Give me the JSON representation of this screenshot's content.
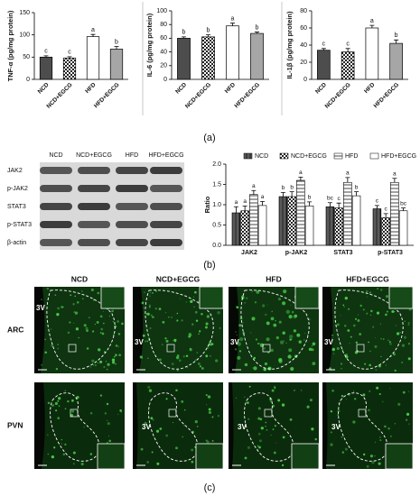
{
  "figure": {
    "panel_labels": [
      "(a)",
      "(b)",
      "(c)"
    ]
  },
  "chart_data": [
    {
      "type": "bar",
      "y_label": "TNF-α (pg/mg protein)",
      "categories": [
        "NCD",
        "NCD+EGCG",
        "HFD",
        "HFD+EGCG"
      ],
      "values": [
        50,
        48,
        96,
        68
      ],
      "errors": [
        3,
        3,
        5,
        6
      ],
      "letters": [
        "c",
        "c",
        "a",
        "b"
      ],
      "colors": [
        "#4d4d4d",
        "#ffffff",
        "#ffffff",
        "#a6a6a6"
      ],
      "patterns": [
        "solid",
        "checker",
        "solid",
        "solid"
      ],
      "ylim": [
        0,
        150
      ],
      "yticks": [
        0,
        50,
        100,
        150
      ]
    },
    {
      "type": "bar",
      "y_label": "IL-6 (pg/mg protein)",
      "categories": [
        "NCD",
        "NCD+EGCG",
        "HFD",
        "HFD+EGCG"
      ],
      "values": [
        60,
        62,
        78,
        67
      ],
      "errors": [
        2,
        3,
        4,
        2
      ],
      "letters": [
        "b",
        "b",
        "a",
        "b"
      ],
      "colors": [
        "#4d4d4d",
        "#ffffff",
        "#ffffff",
        "#a6a6a6"
      ],
      "patterns": [
        "solid",
        "checker",
        "solid",
        "solid"
      ],
      "ylim": [
        0,
        100
      ],
      "yticks": [
        0,
        20,
        40,
        60,
        80,
        100
      ]
    },
    {
      "type": "bar",
      "y_label": "IL-1β (pg/mg protein)",
      "categories": [
        "NCD",
        "NCD+EGCG",
        "HFD",
        "HFD+EGCG"
      ],
      "values": [
        34,
        32,
        60,
        42
      ],
      "errors": [
        2,
        4,
        3,
        4
      ],
      "letters": [
        "c",
        "c",
        "a",
        "b"
      ],
      "colors": [
        "#4d4d4d",
        "#ffffff",
        "#ffffff",
        "#a6a6a6"
      ],
      "patterns": [
        "solid",
        "checker",
        "solid",
        "solid"
      ],
      "ylim": [
        0,
        80
      ],
      "yticks": [
        0,
        20,
        40,
        60,
        80
      ]
    },
    {
      "type": "grouped_bar",
      "y_label": "Ratio",
      "categories": [
        "JAK2",
        "p-JAK2",
        "STAT3",
        "p-STAT3"
      ],
      "series": [
        {
          "name": "NCD",
          "color": "#5a5a5a",
          "pattern": "vstripe",
          "values": [
            0.8,
            1.2,
            0.95,
            0.9
          ],
          "errors": [
            0.15,
            0.1,
            0.1,
            0.08
          ],
          "letters": [
            "a",
            "b",
            "bc",
            "c"
          ]
        },
        {
          "name": "NCD+EGCG",
          "color": "#ffffff",
          "pattern": "checker",
          "values": [
            0.85,
            1.2,
            0.92,
            0.68
          ],
          "errors": [
            0.12,
            0.12,
            0.12,
            0.1
          ],
          "letters": [
            "a",
            "b",
            "c",
            "c"
          ]
        },
        {
          "name": "HFD",
          "color": "#ffffff",
          "pattern": "hstripe",
          "values": [
            1.25,
            1.6,
            1.55,
            1.55
          ],
          "errors": [
            0.1,
            0.08,
            0.12,
            0.1
          ],
          "letters": [
            "a",
            "a",
            "a",
            "a"
          ]
        },
        {
          "name": "HFD+EGCG",
          "color": "#ffffff",
          "pattern": "solid",
          "values": [
            0.98,
            0.97,
            1.22,
            0.85
          ],
          "errors": [
            0.1,
            0.1,
            0.1,
            0.07
          ],
          "letters": [
            "a",
            "b",
            "b",
            "bc"
          ]
        }
      ],
      "ylim": [
        0,
        2
      ],
      "yticks": [
        {
          "value": 0,
          "label": "0.0"
        },
        0.5,
        {
          "value": 1,
          "label": "1.0"
        },
        1.5,
        {
          "value": 2,
          "label": "2.0"
        }
      ],
      "legend": "top"
    }
  ],
  "western_blot": {
    "lanes": [
      "NCD",
      "NCD+EGCG",
      "HFD",
      "HFD+EGCG"
    ],
    "proteins": [
      "JAK2",
      "p-JAK2",
      "STAT3",
      "p-STAT3",
      "β-actin"
    ]
  },
  "micrographs": {
    "columns": [
      "NCD",
      "NCD+EGCG",
      "HFD",
      "HFD+EGCG"
    ],
    "rows": [
      "ARC",
      "PVN"
    ],
    "region_label": "3V"
  }
}
